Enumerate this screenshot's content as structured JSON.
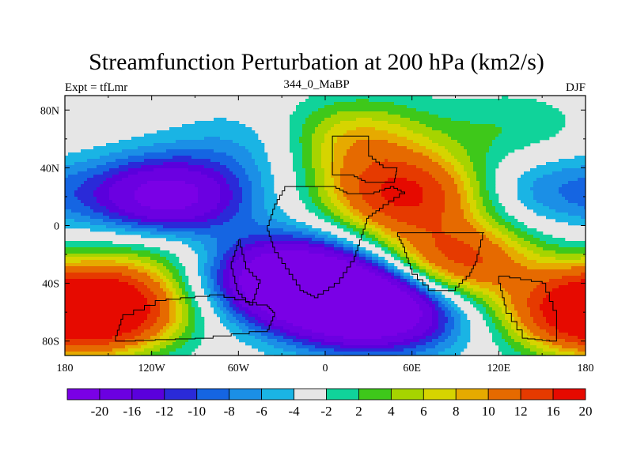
{
  "title": "Streamfunction Perturbation at 200 hPa (km2/s)",
  "left_label": "Expt = tfLmr",
  "center_label": "344_0_MaBP",
  "right_label": "DJF",
  "x_ticks": [
    "180",
    "120W",
    "60W",
    "0",
    "60E",
    "120E",
    "180"
  ],
  "y_ticks": [
    "80N",
    "40N",
    "0",
    "40S",
    "80S"
  ],
  "colorbar": {
    "colors": [
      "#7a00e6",
      "#6b00e1",
      "#5a00dc",
      "#2a2ad8",
      "#1565e2",
      "#1b8fe6",
      "#1ab4e4",
      "#e6e6e6",
      "#10d39a",
      "#3ec81a",
      "#a6d400",
      "#d6d400",
      "#e6aa00",
      "#e66a00",
      "#e63a00",
      "#e60a00"
    ],
    "labels": [
      "-20",
      "-16",
      "-12",
      "-10",
      "-8",
      "-6",
      "-4",
      "-2",
      "2",
      "4",
      "6",
      "8",
      "10",
      "12",
      "16",
      "20"
    ]
  },
  "chart_data": {
    "type": "heatmap",
    "title": "Streamfunction Perturbation at 200 hPa (km2/s)",
    "xlabel": "",
    "ylabel": "",
    "x_range": [
      -180,
      180
    ],
    "y_range": [
      -90,
      90
    ],
    "x_ticks": [
      -180,
      -120,
      -60,
      0,
      60,
      120,
      180
    ],
    "y_ticks": [
      80,
      40,
      0,
      -40,
      -80
    ],
    "levels": [
      -20,
      -16,
      -12,
      -10,
      -8,
      -6,
      -4,
      -2,
      2,
      4,
      6,
      8,
      10,
      12,
      16,
      20
    ],
    "features": [
      {
        "lon": -110,
        "lat": 18,
        "value": -20
      },
      {
        "lon": -30,
        "lat": -35,
        "value": -20
      },
      {
        "lon": 15,
        "lat": -52,
        "value": -22
      },
      {
        "lon": 50,
        "lat": -60,
        "value": -12
      },
      {
        "lon": 55,
        "lat": 22,
        "value": 20
      },
      {
        "lon": 90,
        "lat": -25,
        "value": 18
      },
      {
        "lon": -150,
        "lat": -57,
        "value": 20
      },
      {
        "lon": 178,
        "lat": -60,
        "value": 18
      },
      {
        "lon": 20,
        "lat": 60,
        "value": 10
      },
      {
        "lon": -50,
        "lat": 55,
        "value": -4
      },
      {
        "lon": 150,
        "lat": 25,
        "value": -6
      },
      {
        "lon": -115,
        "lat": -12,
        "value": 6
      },
      {
        "lon": 130,
        "lat": 65,
        "value": 4
      }
    ]
  }
}
